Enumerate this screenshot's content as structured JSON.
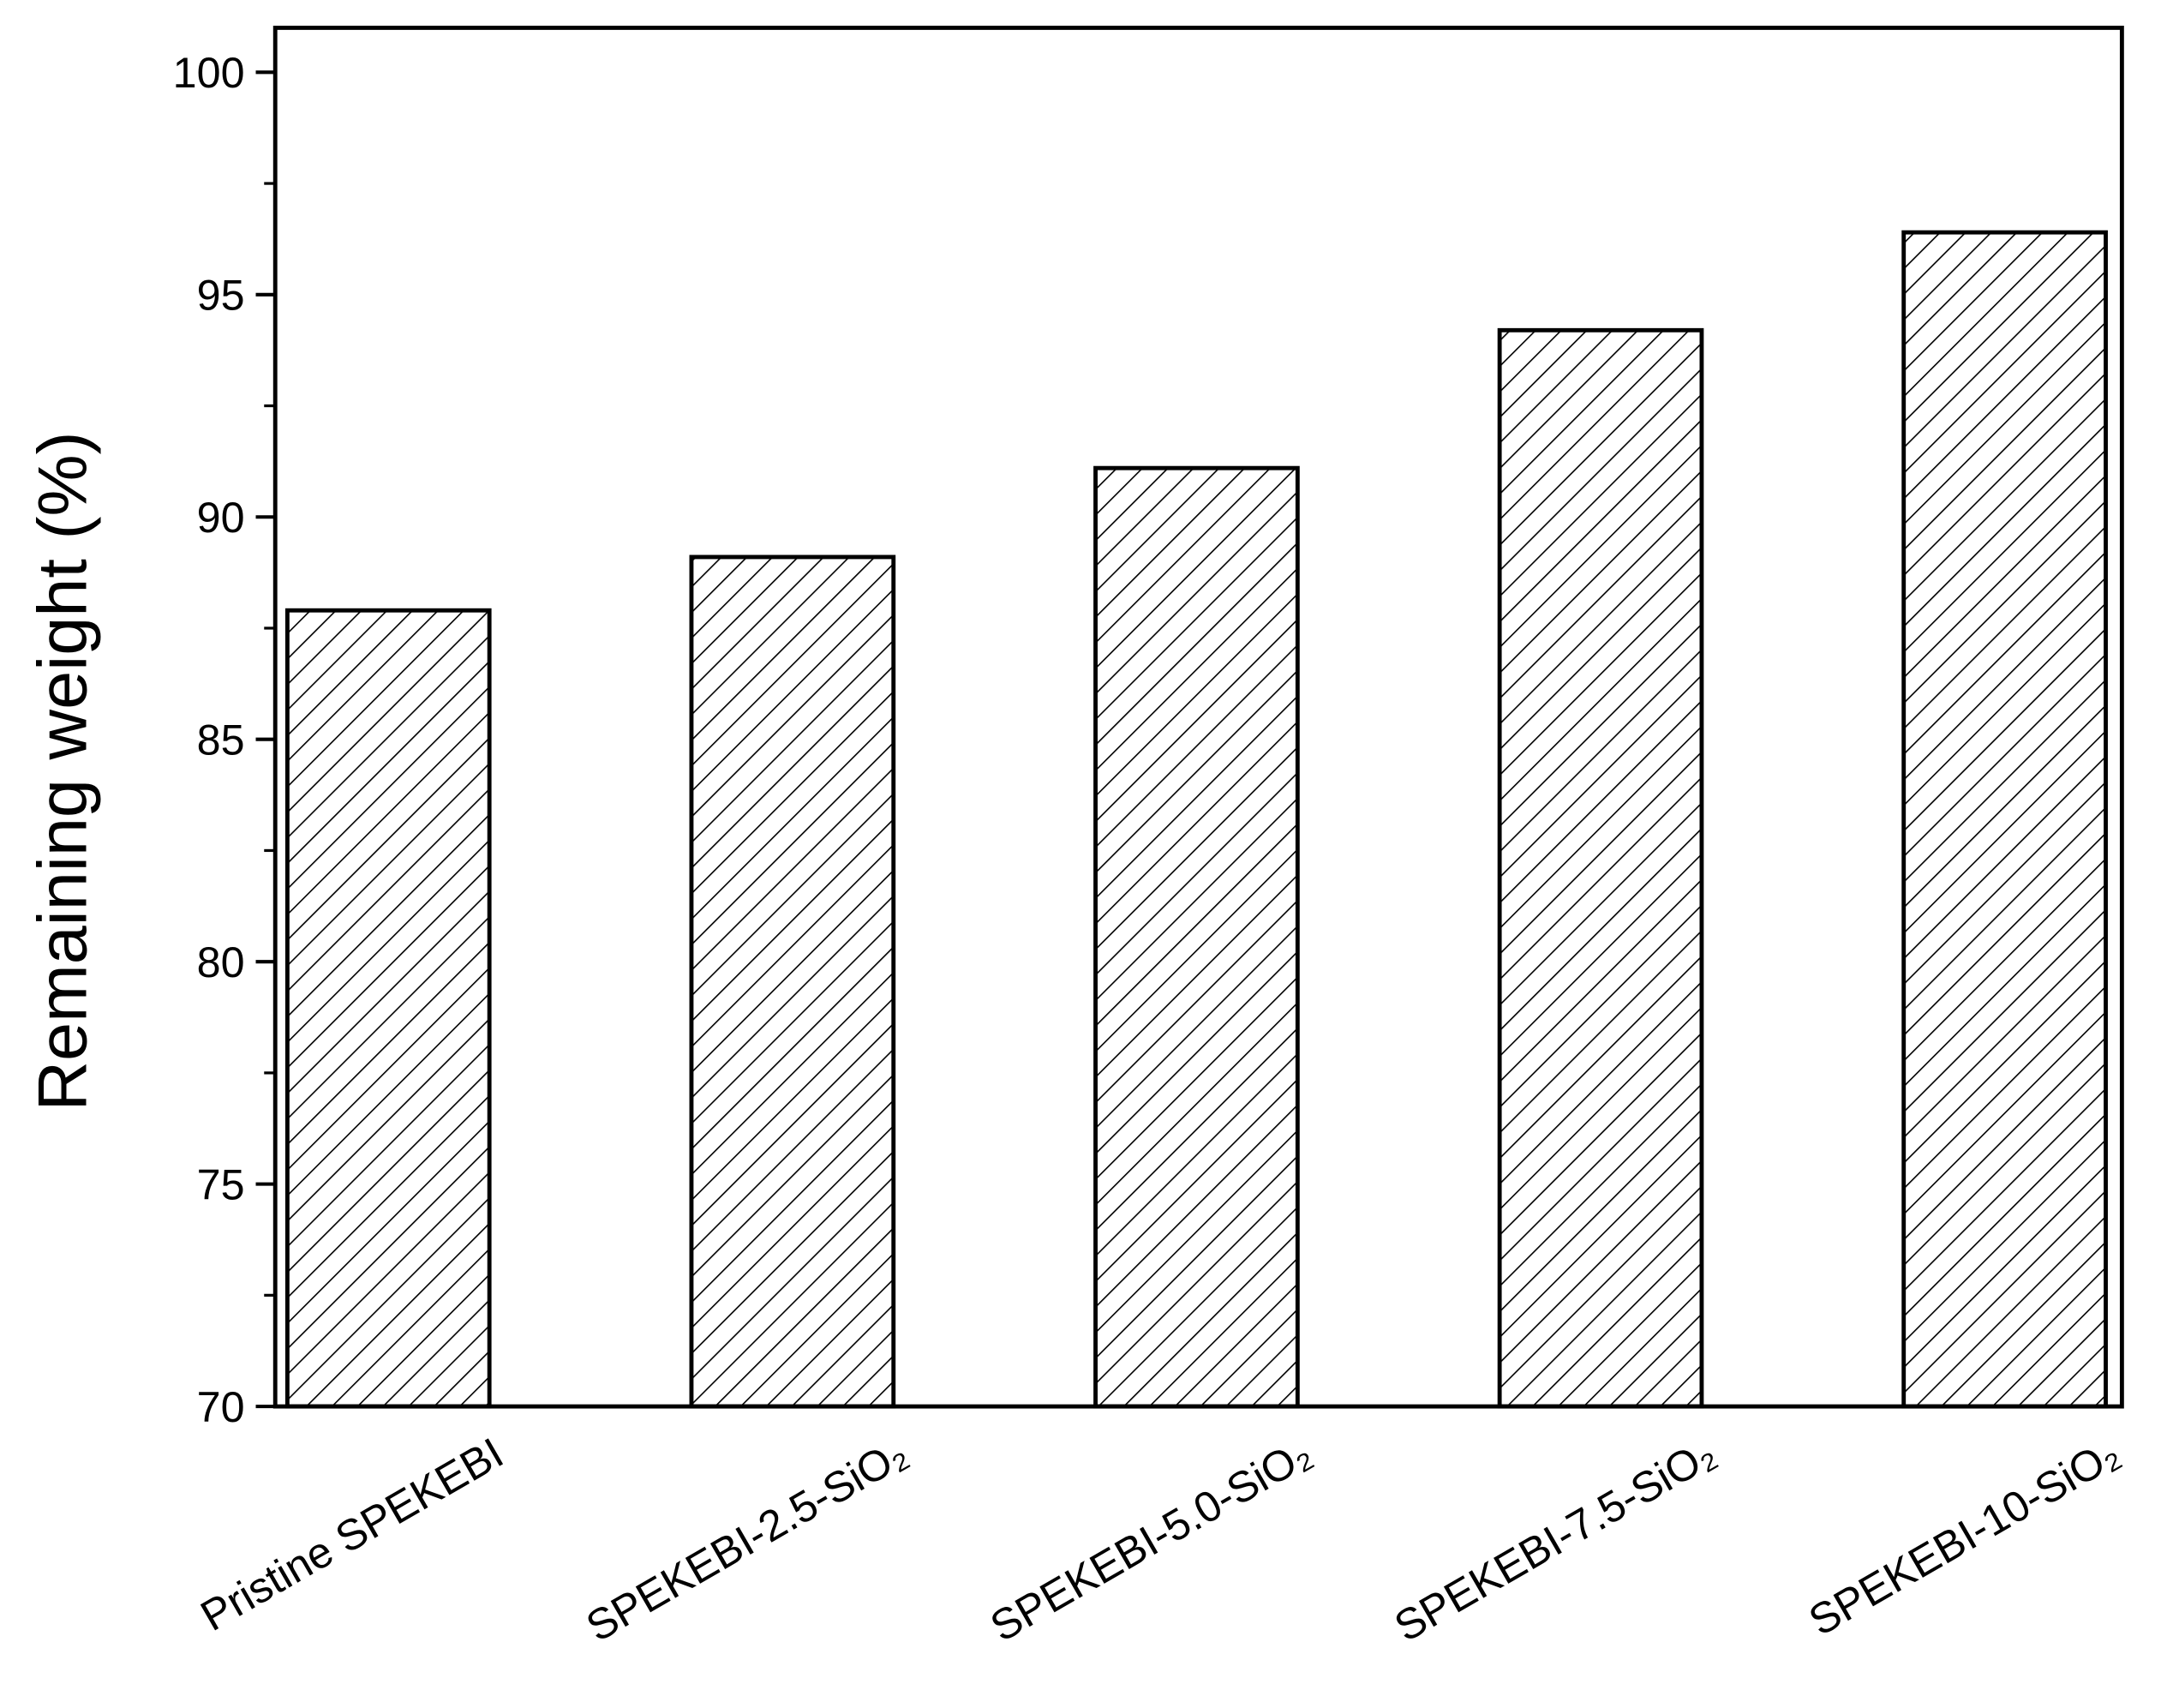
{
  "chart_data": {
    "type": "bar",
    "ylabel": "Remaining weight (%)",
    "categories": [
      "Pristine SPEKEBI",
      "SPEKEBI-2.5-SiO₂",
      "SPEKEBI-5.0-SiO₂",
      "SPEKEBI-7.5-SiO₂",
      "SPEKEBI-10-SiO₂"
    ],
    "values": [
      87.9,
      89.1,
      91.1,
      94.2,
      96.4
    ],
    "color": "#000000",
    "pattern": "hatch",
    "ylim": [
      70,
      101
    ],
    "yticks": [
      70,
      75,
      80,
      85,
      90,
      95,
      100
    ],
    "yminorticks": [
      72.5,
      77.5,
      82.5,
      87.5,
      92.5,
      97.5
    ],
    "grid": false
  }
}
